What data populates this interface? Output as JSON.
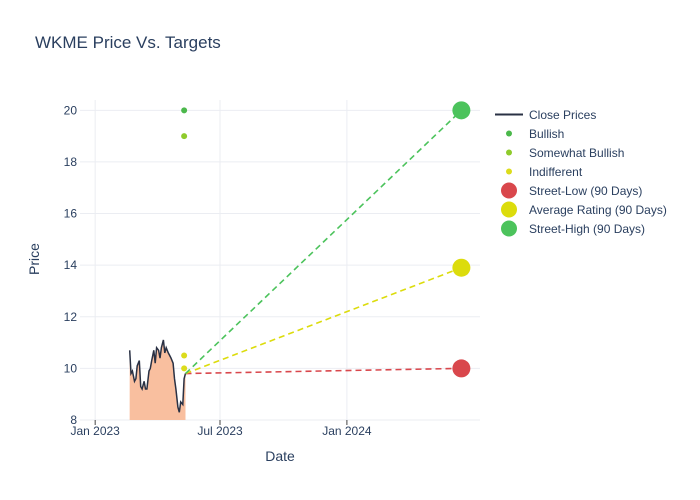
{
  "title": "WKME Price Vs. Targets",
  "chart_data": {
    "type": "line",
    "title": "WKME Price Vs. Targets",
    "xlabel": "Date",
    "ylabel": "Price",
    "ylim": [
      8,
      20.4
    ],
    "xlim": [
      "2022-12-10",
      "2024-07-12"
    ],
    "grid": true,
    "legend_position": "right",
    "x_ticks": [
      {
        "date": "2023-01-01",
        "label": "Jan 2023"
      },
      {
        "date": "2023-07-01",
        "label": "Jul 2023"
      },
      {
        "date": "2024-01-01",
        "label": "Jan 2024"
      }
    ],
    "y_ticks": [
      8,
      10,
      12,
      14,
      16,
      18,
      20
    ],
    "close_prices": {
      "name": "Close Prices",
      "color": "#2a3144",
      "fill_color": "#f9bf9f",
      "points": [
        [
          "2023-02-20",
          10.7
        ],
        [
          "2023-02-22",
          9.8
        ],
        [
          "2023-02-24",
          9.9
        ],
        [
          "2023-02-27",
          9.5
        ],
        [
          "2023-03-01",
          9.6
        ],
        [
          "2023-03-03",
          10.1
        ],
        [
          "2023-03-06",
          10.3
        ],
        [
          "2023-03-08",
          9.3
        ],
        [
          "2023-03-10",
          9.2
        ],
        [
          "2023-03-13",
          9.5
        ],
        [
          "2023-03-15",
          9.2
        ],
        [
          "2023-03-17",
          9.2
        ],
        [
          "2023-03-20",
          9.9
        ],
        [
          "2023-03-22",
          10.0
        ],
        [
          "2023-03-24",
          10.3
        ],
        [
          "2023-03-27",
          10.7
        ],
        [
          "2023-03-29",
          10.2
        ],
        [
          "2023-03-31",
          10.8
        ],
        [
          "2023-04-03",
          10.7
        ],
        [
          "2023-04-05",
          10.4
        ],
        [
          "2023-04-07",
          10.8
        ],
        [
          "2023-04-10",
          11.1
        ],
        [
          "2023-04-12",
          10.6
        ],
        [
          "2023-04-14",
          10.8
        ],
        [
          "2023-04-17",
          10.6
        ],
        [
          "2023-04-19",
          10.5
        ],
        [
          "2023-04-21",
          10.4
        ],
        [
          "2023-04-24",
          10.2
        ],
        [
          "2023-04-26",
          9.6
        ],
        [
          "2023-04-28",
          9.2
        ],
        [
          "2023-05-01",
          8.5
        ],
        [
          "2023-05-03",
          8.3
        ],
        [
          "2023-05-05",
          8.7
        ],
        [
          "2023-05-08",
          8.6
        ],
        [
          "2023-05-10",
          9.6
        ],
        [
          "2023-05-12",
          9.8
        ]
      ]
    },
    "series": [
      {
        "name": "Bullish",
        "color": "#4bb84b",
        "marker": "small",
        "points": [
          [
            "2023-05-10",
            20.0
          ]
        ]
      },
      {
        "name": "Somewhat Bullish",
        "color": "#8fcb2c",
        "marker": "small",
        "points": [
          [
            "2023-05-10",
            19.0
          ]
        ]
      },
      {
        "name": "Indifferent",
        "color": "#dcdc1c",
        "marker": "small",
        "points": [
          [
            "2023-05-10",
            10.5
          ],
          [
            "2023-05-10",
            10.0
          ]
        ]
      },
      {
        "name": "Street-Low (90 Days)",
        "color": "#d9474c",
        "marker": "large",
        "points": [
          [
            "2024-06-15",
            10.0
          ]
        ],
        "projection": [
          [
            "2023-05-12",
            9.8
          ],
          [
            "2024-06-15",
            10.0
          ]
        ]
      },
      {
        "name": "Average Rating (90 Days)",
        "color": "#dcdc0c",
        "marker": "large",
        "points": [
          [
            "2024-06-15",
            13.9
          ]
        ],
        "projection": [
          [
            "2023-05-12",
            9.8
          ],
          [
            "2024-06-15",
            13.9
          ]
        ]
      },
      {
        "name": "Street-High (90 Days)",
        "color": "#4cc35c",
        "marker": "large",
        "points": [
          [
            "2024-06-15",
            20.0
          ]
        ],
        "projection": [
          [
            "2023-05-12",
            9.8
          ],
          [
            "2024-06-15",
            20.0
          ]
        ]
      }
    ]
  },
  "legend": [
    {
      "label": "Close Prices",
      "kind": "line",
      "color": "#2a3144"
    },
    {
      "label": "Bullish",
      "kind": "small",
      "color": "#4bb84b"
    },
    {
      "label": "Somewhat Bullish",
      "kind": "small",
      "color": "#8fcb2c"
    },
    {
      "label": "Indifferent",
      "kind": "small",
      "color": "#dcdc1c"
    },
    {
      "label": "Street-Low (90 Days)",
      "kind": "large",
      "color": "#d9474c"
    },
    {
      "label": "Average Rating (90 Days)",
      "kind": "large",
      "color": "#dcdc0c"
    },
    {
      "label": "Street-High (90 Days)",
      "kind": "large",
      "color": "#4cc35c"
    }
  ]
}
